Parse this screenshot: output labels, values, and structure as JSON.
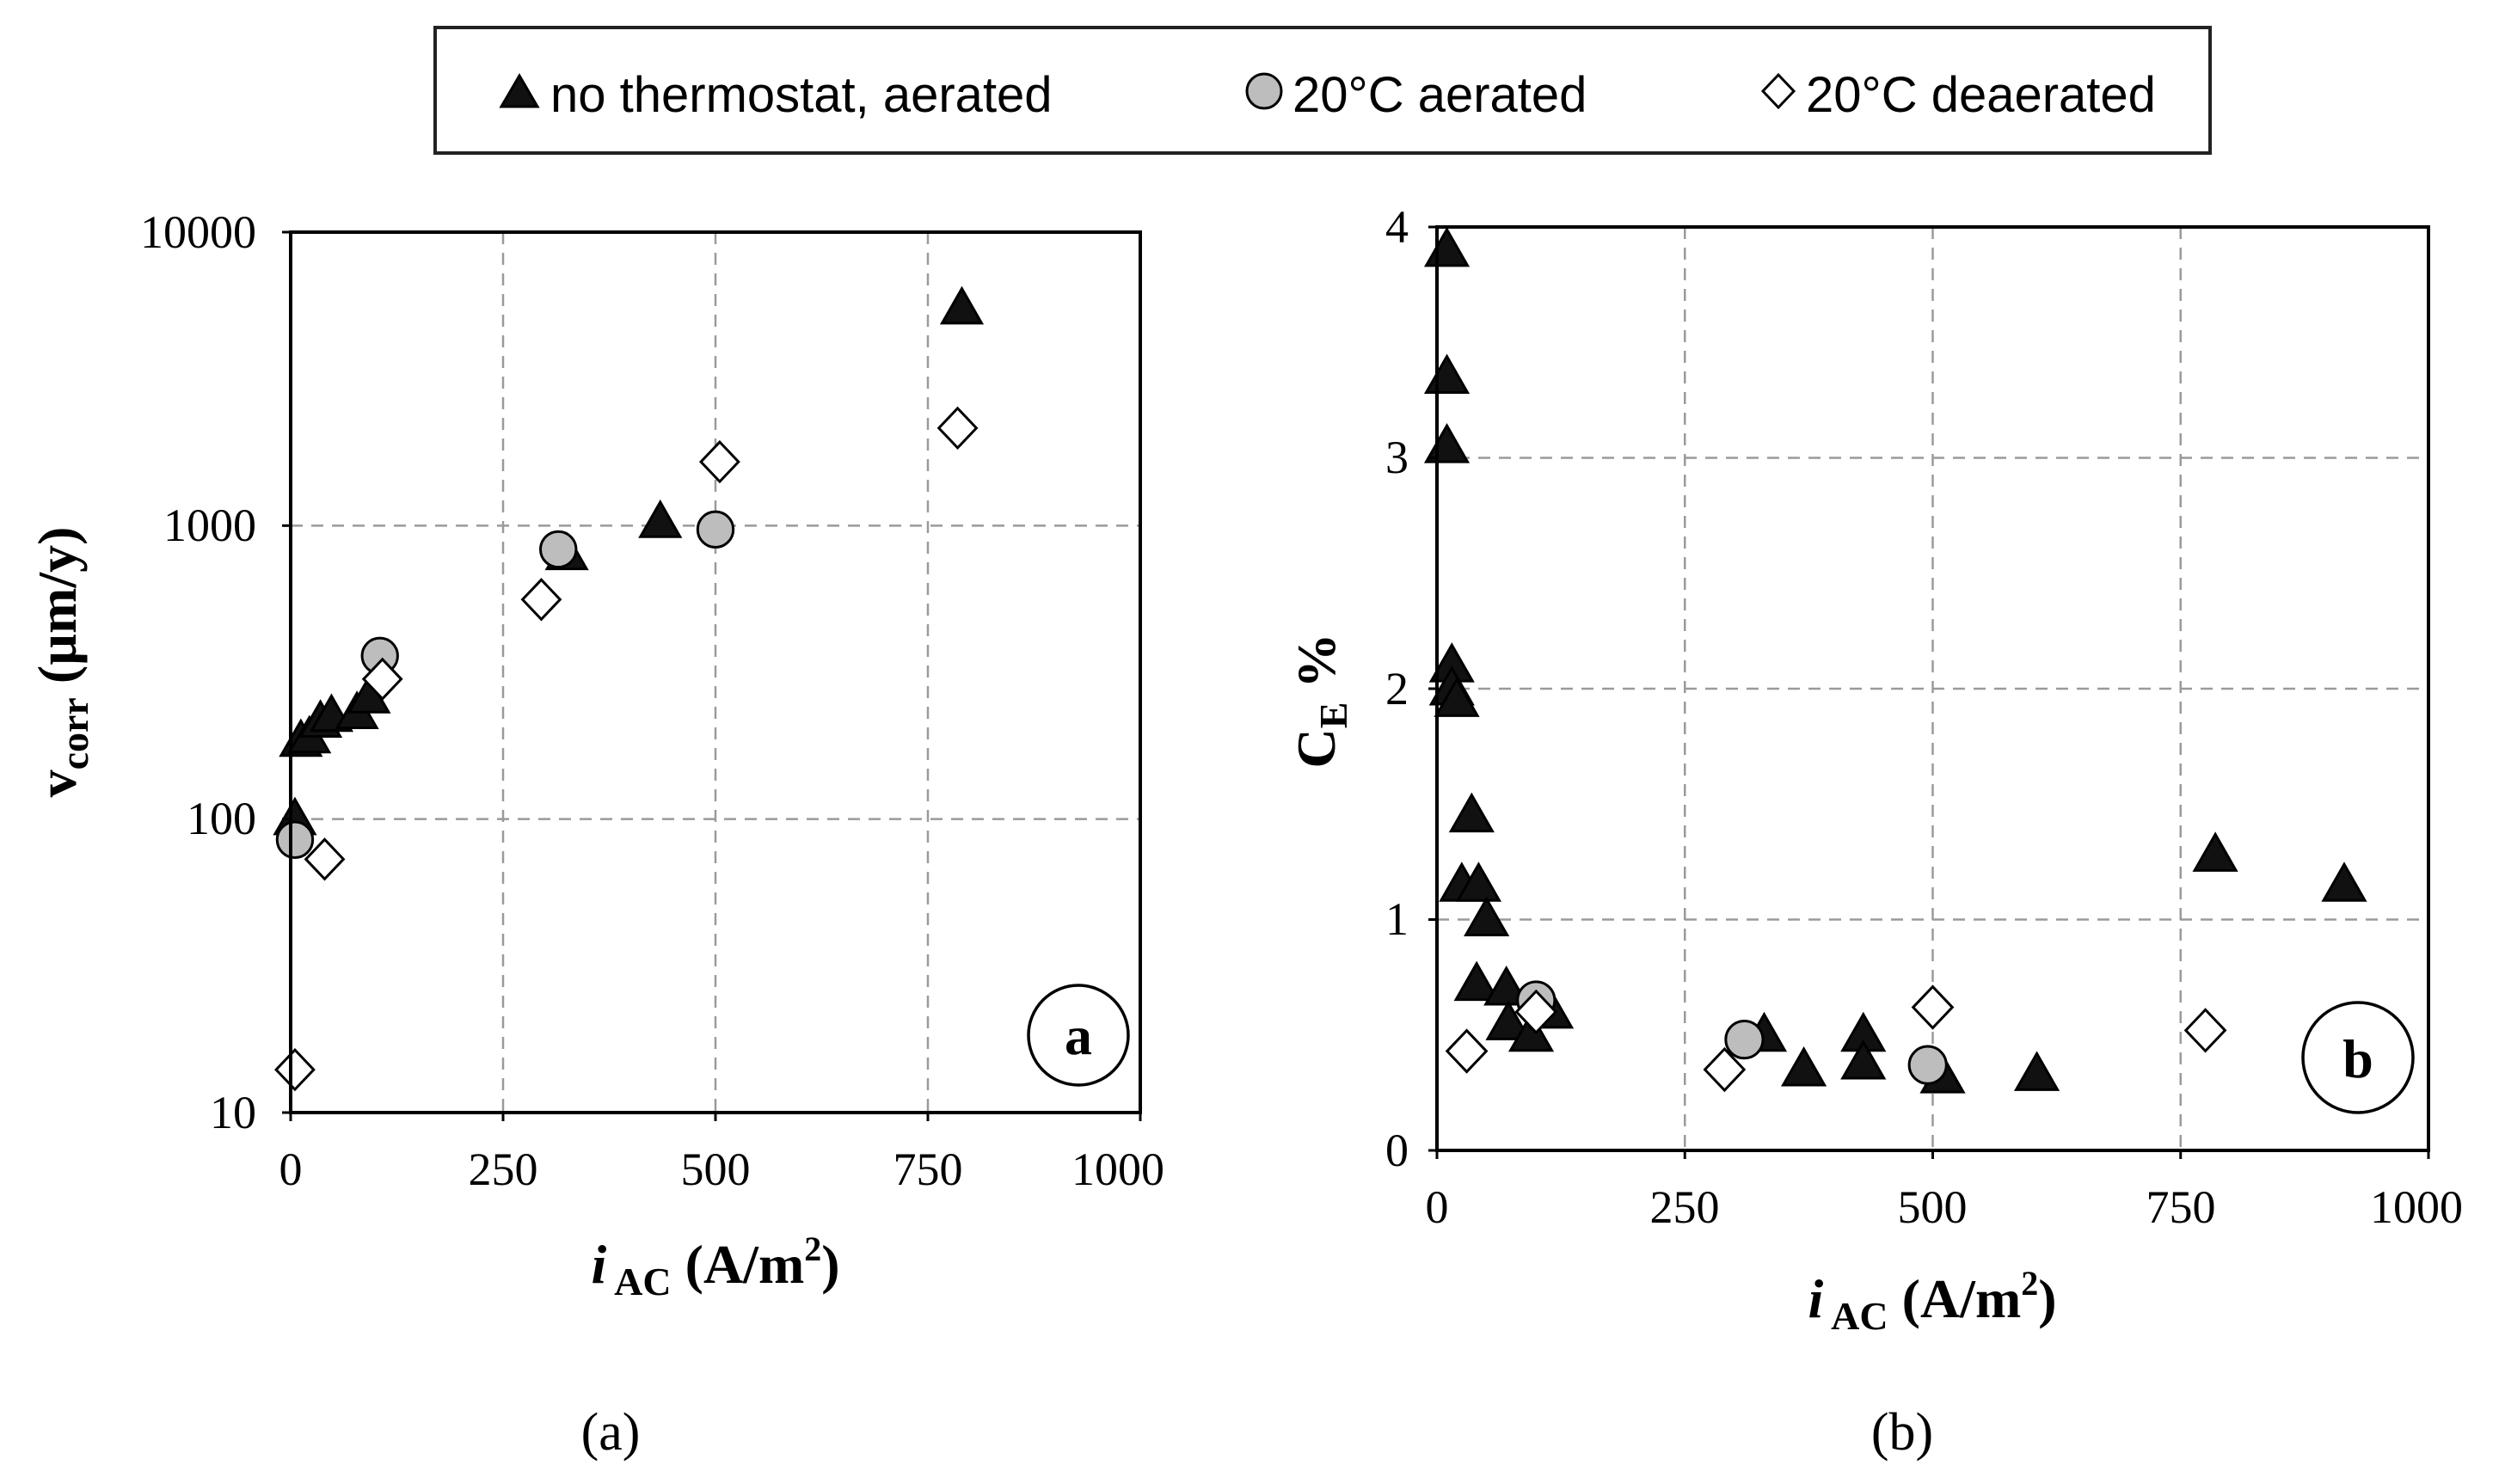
{
  "legend": {
    "entries": [
      {
        "key": "nothermo",
        "label": "no thermostat, aerated",
        "marker": "triangle"
      },
      {
        "key": "aerated",
        "label": "20°C aerated",
        "marker": "circle"
      },
      {
        "key": "deaerated",
        "label": "20°C deaerated",
        "marker": "diamond"
      }
    ]
  },
  "colors": {
    "triangle_fill": "#111111",
    "circle_fill": "#bdbdbd",
    "diamond_fill": "#ffffff",
    "grid": "#9a9a9a",
    "axis": "#000000"
  },
  "chart_data": [
    {
      "id": "a",
      "type": "scatter",
      "badge": "a",
      "subcaption": "(a)",
      "ylabel": {
        "main": "v",
        "sub": "corr",
        "unit": " (µm/y)"
      },
      "xlabel": {
        "main": "i",
        "sub": " AC",
        "unit": " (A/m",
        "sup": "2",
        "close": ")"
      },
      "yscale": "log",
      "xlim": [
        0,
        1000
      ],
      "ylim": [
        10,
        10000
      ],
      "xticks": [
        0,
        250,
        500,
        750,
        1000
      ],
      "xtick_labels": [
        "0",
        "250",
        "500",
        "750",
        "1000"
      ],
      "yticks": [
        10,
        100,
        1000,
        10000
      ],
      "ytick_labels": [
        "10",
        "100",
        "1000",
        "10000"
      ],
      "grid": true,
      "series": [
        {
          "key": "nothermo",
          "name": "no thermostat, aerated",
          "marker": "triangle",
          "points": [
            [
              5,
              100
            ],
            [
              12,
              185
            ],
            [
              22,
              190
            ],
            [
              35,
              215
            ],
            [
              48,
              225
            ],
            [
              78,
              230
            ],
            [
              92,
              260
            ],
            [
              325,
              800
            ],
            [
              435,
              1030
            ],
            [
              790,
              5500
            ]
          ]
        },
        {
          "key": "aerated",
          "name": "20°C aerated",
          "marker": "circle",
          "points": [
            [
              5,
              85
            ],
            [
              105,
              360
            ],
            [
              315,
              830
            ],
            [
              500,
              970
            ]
          ]
        },
        {
          "key": "deaerated",
          "name": "20°C deaerated",
          "marker": "diamond",
          "points": [
            [
              5,
              14
            ],
            [
              40,
              73
            ],
            [
              108,
              300
            ],
            [
              295,
              560
            ],
            [
              505,
              1650
            ],
            [
              785,
              2150
            ]
          ]
        }
      ]
    },
    {
      "id": "b",
      "type": "scatter",
      "badge": "b",
      "subcaption": "(b)",
      "ylabel": {
        "main": "C",
        "sub": "E",
        "unit": " %"
      },
      "xlabel": {
        "main": "i",
        "sub": " AC",
        "unit": " (A/m",
        "sup": "2",
        "close": ")"
      },
      "yscale": "linear",
      "xlim": [
        0,
        1000
      ],
      "ylim": [
        0,
        4
      ],
      "xticks": [
        0,
        250,
        500,
        750,
        1000
      ],
      "xtick_labels": [
        "0",
        "250",
        "500",
        "750",
        "1000"
      ],
      "yticks": [
        0,
        1,
        2,
        3,
        4
      ],
      "ytick_labels": [
        "0",
        "1",
        "2",
        "3",
        "4"
      ],
      "grid": true,
      "series": [
        {
          "key": "nothermo",
          "name": "no thermostat, aerated",
          "marker": "triangle",
          "points": [
            [
              10,
              3.9
            ],
            [
              10,
              3.35
            ],
            [
              10,
              3.05
            ],
            [
              15,
              2.1
            ],
            [
              15,
              2.0
            ],
            [
              20,
              1.95
            ],
            [
              35,
              1.45
            ],
            [
              25,
              1.15
            ],
            [
              42,
              1.15
            ],
            [
              50,
              1.0
            ],
            [
              40,
              0.72
            ],
            [
              70,
              0.7
            ],
            [
              72,
              0.55
            ],
            [
              95,
              0.5
            ],
            [
              115,
              0.6
            ],
            [
              330,
              0.5
            ],
            [
              370,
              0.35
            ],
            [
              430,
              0.5
            ],
            [
              430,
              0.38
            ],
            [
              510,
              0.32
            ],
            [
              605,
              0.33
            ],
            [
              785,
              1.28
            ],
            [
              915,
              1.15
            ]
          ]
        },
        {
          "key": "aerated",
          "name": "20°C aerated",
          "marker": "circle",
          "points": [
            [
              100,
              0.65
            ],
            [
              310,
              0.48
            ],
            [
              495,
              0.37
            ]
          ]
        },
        {
          "key": "deaerated",
          "name": "20°C deaerated",
          "marker": "diamond",
          "points": [
            [
              30,
              0.43
            ],
            [
              100,
              0.6
            ],
            [
              290,
              0.35
            ],
            [
              500,
              0.62
            ],
            [
              775,
              0.52
            ]
          ]
        }
      ]
    }
  ]
}
